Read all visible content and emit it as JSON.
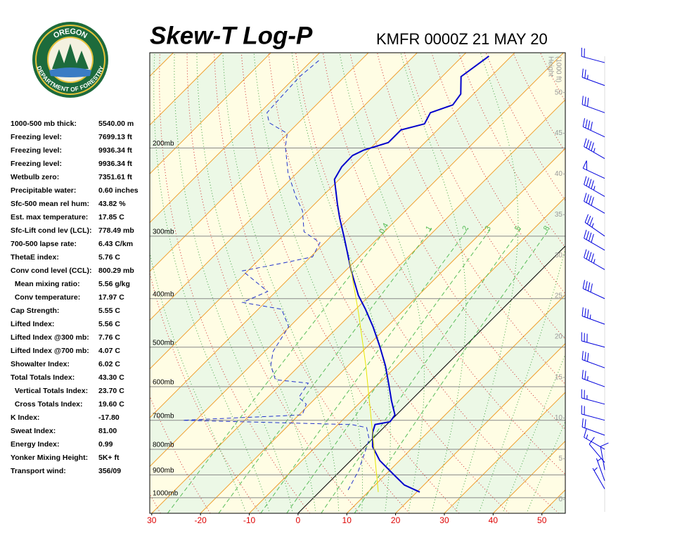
{
  "header": {
    "logo_top": "OREGON",
    "logo_bottom": "DEPARTMENT OF FORESTRY",
    "title": "Skew-T Log-P",
    "station": "KMFR 0000Z 21 MAY 20"
  },
  "stats": [
    {
      "label": "1000-500 mb thick:",
      "value": "5540.00 m"
    },
    {
      "label": "Freezing level:",
      "value": "7699.13 ft"
    },
    {
      "label": "Freezing level:",
      "value": "9936.34 ft"
    },
    {
      "label": "Freezing level:",
      "value": "9936.34 ft"
    },
    {
      "label": "Wetbulb zero:",
      "value": "7351.61 ft"
    },
    {
      "label": "Precipitable water:",
      "value": "0.60 inches"
    },
    {
      "label": "Sfc-500 mean rel hum:",
      "value": "43.82 %"
    },
    {
      "label": "Est. max temperature:",
      "value": "17.85 C"
    },
    {
      "label": "Sfc-Lift cond lev (LCL):",
      "value": "778.49 mb"
    },
    {
      "label": "700-500 lapse rate:",
      "value": "6.43 C/km"
    },
    {
      "label": "ThetaE index:",
      "value": "5.76 C"
    },
    {
      "label": "Conv cond level (CCL):",
      "value": "800.29 mb"
    },
    {
      "label": "  Mean mixing ratio:",
      "value": "5.56 g/kg"
    },
    {
      "label": "  Conv temperature:",
      "value": "17.97 C"
    },
    {
      "label": "Cap Strength:",
      "value": "5.55 C"
    },
    {
      "label": "Lifted Index:",
      "value": "5.56 C"
    },
    {
      "label": "Lifted Index @300 mb:",
      "value": "7.76 C"
    },
    {
      "label": "Lifted Index @700 mb:",
      "value": "4.07 C"
    },
    {
      "label": "Showalter Index:",
      "value": "6.02 C"
    },
    {
      "label": "Total Totals Index:",
      "value": "43.30 C"
    },
    {
      "label": "  Vertical Totals Index:",
      "value": "23.70 C"
    },
    {
      "label": "  Cross Totals Index:",
      "value": "19.60 C"
    },
    {
      "label": "K Index:",
      "value": "-17.80"
    },
    {
      "label": "Sweat Index:",
      "value": "81.00"
    },
    {
      "label": "Energy Index:",
      "value": "0.99"
    },
    {
      "label": "Yonker Mixing Height:",
      "value": "5K+ ft"
    },
    {
      "label": "Transport wind:",
      "value": "356/09"
    }
  ],
  "chart_data": {
    "type": "skewt",
    "log_scale": true,
    "xlim": [
      -30.4,
      54.8
    ],
    "xticks": [
      {
        "value": -30,
        "label": "30"
      },
      -20,
      -10,
      0,
      10,
      20,
      30,
      40,
      50
    ],
    "xtick_color": "#dd0000",
    "ylim": [
      1074,
      129
    ],
    "yticks": [
      {
        "value": 1000,
        "label": "1000mb"
      },
      {
        "value": 900,
        "label": "900mb"
      },
      {
        "value": 800,
        "label": "800mb"
      },
      {
        "value": 700,
        "label": "700mb"
      },
      {
        "value": 600,
        "label": "600mb"
      },
      {
        "value": 500,
        "label": "500mb"
      },
      {
        "value": 400,
        "label": "400mb"
      },
      {
        "value": 300,
        "label": "300mb"
      },
      {
        "value": 200,
        "label": "200mb"
      }
    ],
    "y2label": [
      "Height",
      "(1000 ft)"
    ],
    "y2lim": [
      -1.7,
      54.9
    ],
    "y2ticks": [
      0,
      5,
      10,
      15,
      20,
      25,
      30,
      35,
      40,
      45,
      50
    ],
    "mixing_ratios": [
      0.4,
      1,
      2,
      3,
      5,
      8
    ],
    "mixing_ratio_color": "#55bb55",
    "series": [
      {
        "color": "#0000cc",
        "style": "solid",
        "width": 2,
        "x": [
          20.6,
          16.0,
          11.7,
          5.9,
          1.6,
          -1.3,
          -2.4,
          0.1,
          -0.3,
          -3.9,
          -7.6,
          -12.4,
          -17.6,
          -22.9,
          -28.0,
          -32.3,
          -38.8,
          -46.7,
          -52.0,
          -55.3,
          -61.0,
          -62.1,
          -62.2,
          -61.0,
          -57.5,
          -57.5,
          -53.9,
          -55.0,
          -52.0,
          -52.6,
          -56.1,
          -54.6
        ],
        "values": [
          974,
          943,
          899,
          842,
          790,
          740,
          714,
          705,
          683,
          640,
          596,
          544,
          497,
          455,
          420,
          394,
          352,
          304,
          276,
          259,
          231,
          218,
          207,
          202,
          195,
          184,
          179,
          170,
          164,
          156,
          144,
          131
        ]
      },
      {
        "color": "#2233cc",
        "style": "dashed",
        "width": 1,
        "x": [
          5.5,
          4.9,
          3.7,
          0.9,
          -0.6,
          -3.5,
          -7.2,
          -42.7,
          -19.3,
          -20.7,
          -23.6,
          -24.6,
          -32.0,
          -35.9,
          -38.3,
          -40.2,
          -45.2,
          -54.6,
          -51.7,
          -61.1,
          -54.6,
          -49.6,
          -51.0,
          -56.5,
          -61.1,
          -65.4,
          -71.9,
          -77.7,
          -80.1,
          -86.0,
          -88.5,
          -88.8,
          -89.2,
          -88.5
        ],
        "values": [
          965,
          937,
          884,
          803,
          764,
          724,
          714,
          700,
          683,
          650,
          630,
          590,
          581,
          544,
          510,
          455,
          420,
          407,
          387,
          352,
          340,
          330,
          309,
          294,
          267,
          250,
          224,
          199,
          187,
          178,
          170,
          159,
          144,
          133
        ]
      },
      {
        "color": "#e6e600",
        "style": "solid",
        "width": 1,
        "x": [
          12.1,
          -3.7,
          -16.4,
          -28.7,
          -41.4
        ],
        "values": [
          974,
          705,
          544,
          427,
          335
        ]
      }
    ],
    "winds": {
      "color": "#0000dd",
      "pressure": [
        960,
        925,
        880,
        850,
        800,
        750,
        700,
        650,
        600,
        550,
        500,
        450,
        400,
        350,
        320,
        300,
        270,
        250,
        230,
        210,
        190,
        170,
        150,
        135
      ],
      "direction": [
        330,
        340,
        350,
        320,
        300,
        290,
        285,
        285,
        290,
        290,
        285,
        290,
        295,
        300,
        300,
        305,
        300,
        300,
        295,
        300,
        295,
        290,
        290,
        285
      ],
      "speed": [
        5,
        8,
        10,
        10,
        15,
        20,
        20,
        25,
        25,
        30,
        30,
        35,
        40,
        45,
        40,
        35,
        40,
        45,
        50,
        45,
        40,
        30,
        25,
        20
      ]
    }
  }
}
